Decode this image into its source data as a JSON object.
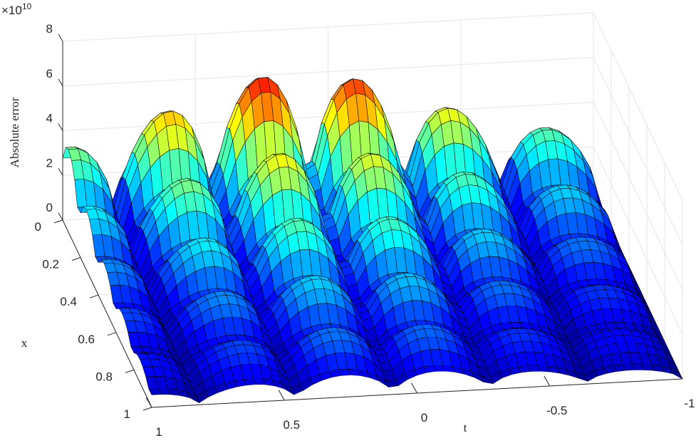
{
  "chart_data": {
    "type": "surface",
    "title": "",
    "xlabel": "t",
    "ylabel": "x",
    "zlabel": "Absolute error",
    "z_exponent_label": "×10",
    "z_exponent_power": "-10",
    "xlim": [
      -1,
      1
    ],
    "ylim": [
      0,
      1
    ],
    "zlim": [
      0,
      8e-10
    ],
    "x_ticks": [
      "1",
      "0.5",
      "0",
      "-0.5",
      "-1"
    ],
    "y_ticks": [
      "0",
      "0.2",
      "0.4",
      "0.6",
      "0.8",
      "1"
    ],
    "z_ticks": [
      "0",
      "2",
      "4",
      "6",
      "8"
    ],
    "grid": true,
    "colormap": "jet",
    "surface_description": "|u - u_N|(t,x): lattice of arched humps with near-zero cusps; peak ≈ 7.5e-10 near t≈0.15, x≈0, decaying toward x=1 and |t|=1",
    "peak_value": 7.5e-10
  }
}
